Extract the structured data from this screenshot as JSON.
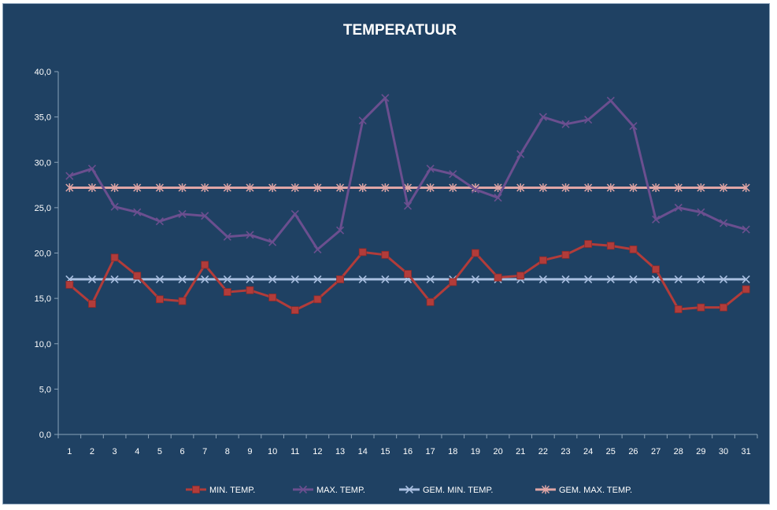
{
  "chart_data": {
    "type": "line",
    "title": "TEMPERATUUR",
    "xlabel": "",
    "ylabel": "",
    "ylim": [
      0,
      40
    ],
    "ytick_step": 5,
    "ytick_labels": [
      "0,0",
      "5,0",
      "10,0",
      "15,0",
      "20,0",
      "25,0",
      "30,0",
      "35,0",
      "40,0"
    ],
    "x": [
      1,
      2,
      3,
      4,
      5,
      6,
      7,
      8,
      9,
      10,
      11,
      12,
      13,
      14,
      15,
      16,
      17,
      18,
      19,
      20,
      21,
      22,
      23,
      24,
      25,
      26,
      27,
      28,
      29,
      30,
      31
    ],
    "grid": false,
    "legend_position": "bottom",
    "series": [
      {
        "name": "MIN. TEMP.",
        "color": "#b23c3a",
        "marker": "square",
        "values": [
          16.5,
          14.4,
          19.5,
          17.5,
          14.9,
          14.7,
          18.7,
          15.7,
          15.9,
          15.1,
          13.7,
          14.9,
          17.1,
          20.1,
          19.8,
          17.7,
          14.6,
          16.8,
          20.0,
          17.3,
          17.5,
          19.2,
          19.8,
          21.0,
          20.8,
          20.4,
          18.2,
          13.8,
          14.0,
          14.0,
          16.0
        ]
      },
      {
        "name": "MAX. TEMP.",
        "color": "#6b4f8f",
        "marker": "x",
        "values": [
          28.5,
          29.3,
          25.1,
          24.5,
          23.5,
          24.3,
          24.1,
          21.8,
          22.0,
          21.2,
          24.3,
          20.4,
          22.5,
          34.6,
          37.1,
          25.2,
          29.3,
          28.7,
          27.0,
          26.1,
          30.9,
          35.0,
          34.2,
          34.7,
          36.8,
          34.0,
          23.7,
          25.0,
          24.5,
          23.3,
          22.6
        ]
      },
      {
        "name": "GEM. MIN. TEMP.",
        "color": "#a9bfe0",
        "marker": "x",
        "values": [
          17.1,
          17.1,
          17.1,
          17.1,
          17.1,
          17.1,
          17.1,
          17.1,
          17.1,
          17.1,
          17.1,
          17.1,
          17.1,
          17.1,
          17.1,
          17.1,
          17.1,
          17.1,
          17.1,
          17.1,
          17.1,
          17.1,
          17.1,
          17.1,
          17.1,
          17.1,
          17.1,
          17.1,
          17.1,
          17.1,
          17.1
        ]
      },
      {
        "name": "GEM. MAX. TEMP.",
        "color": "#e0a6a6",
        "marker": "star",
        "values": [
          27.2,
          27.2,
          27.2,
          27.2,
          27.2,
          27.2,
          27.2,
          27.2,
          27.2,
          27.2,
          27.2,
          27.2,
          27.2,
          27.2,
          27.2,
          27.2,
          27.2,
          27.2,
          27.2,
          27.2,
          27.2,
          27.2,
          27.2,
          27.2,
          27.2,
          27.2,
          27.2,
          27.2,
          27.2,
          27.2,
          27.2
        ]
      }
    ]
  }
}
